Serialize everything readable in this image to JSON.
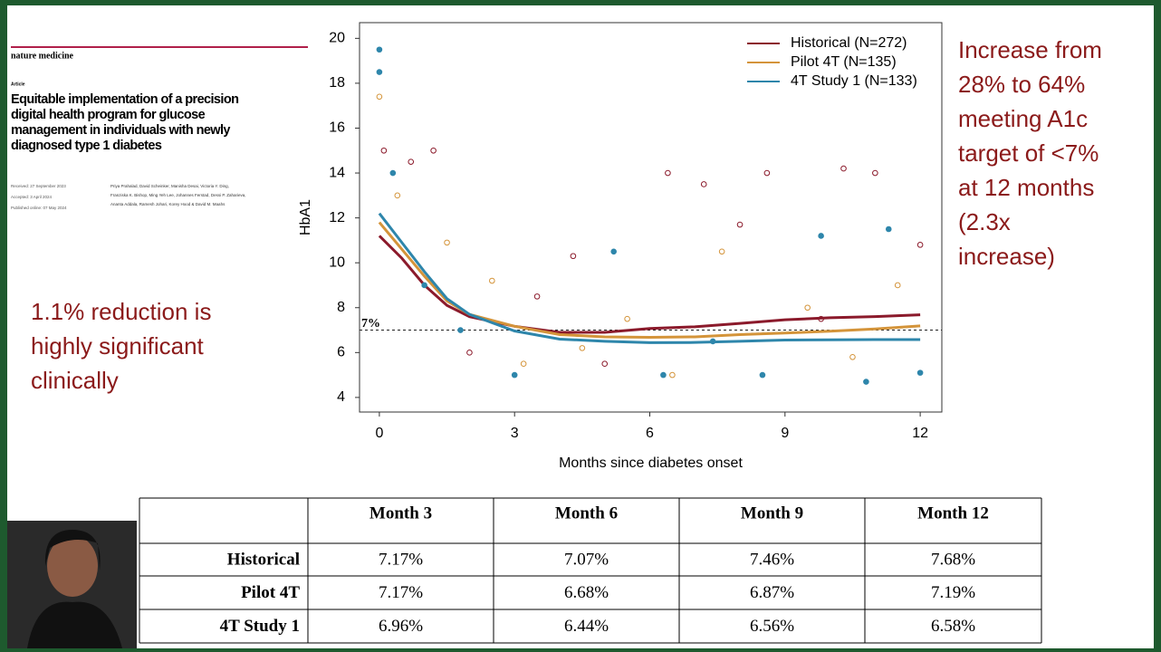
{
  "paper": {
    "journal": "nature medicine",
    "kind": "Article",
    "title_lines": [
      "Equitable implementation of a precision",
      "digital health program for glucose",
      "management in individuals with newly",
      "diagnosed type 1 diabetes"
    ],
    "dates": [
      "Received: 27 September 2023",
      "Accepted: 3 April 2024",
      "Published online: 07 May 2024"
    ],
    "authors_lines": [
      "Priya Prahalad, David Scheinker, Manisha Desai, Victoria Y. Ding,",
      "Franziska K. Bishop, Ming Yeh Lee, Johannes Ferstad, Dessi P. Zaharieva,",
      "Ananta Addala, Ramesh Johari, Korey Hood & David M. Maahs"
    ]
  },
  "left_note": [
    "1.1% reduction is",
    "highly significant",
    "clinically"
  ],
  "right_note": [
    "Increase from",
    "28% to 64%",
    "meeting A1c",
    "target of <7%",
    "at 12 months",
    "(2.3x",
    "increase)"
  ],
  "chart_data": {
    "type": "line",
    "x_label": "Months since diabetes onset",
    "y_label": "HbA1",
    "x": [
      0,
      0.5,
      1,
      1.5,
      2,
      3,
      4,
      5,
      6,
      7,
      8,
      9,
      10,
      11,
      12
    ],
    "series": [
      {
        "name": "Historical (N=272)",
        "color": "#8b1a2b",
        "hollow": true,
        "values": [
          11.2,
          10.2,
          9.0,
          8.1,
          7.6,
          7.17,
          6.9,
          6.9,
          7.07,
          7.15,
          7.3,
          7.46,
          7.55,
          7.6,
          7.68
        ],
        "points": {
          "x": [
            0.1,
            0.7,
            1.2,
            2,
            3.5,
            4.3,
            6.4,
            7.2,
            8.6,
            10.3,
            11,
            9.8,
            12,
            5,
            8
          ],
          "y": [
            15,
            14.5,
            15,
            6,
            8.5,
            10.3,
            14,
            13.5,
            14,
            14.2,
            14,
            7.5,
            10.8,
            5.5,
            11.7
          ]
        }
      },
      {
        "name": "Pilot 4T (N=135)",
        "color": "#d4943a",
        "hollow": true,
        "values": [
          11.8,
          10.6,
          9.4,
          8.3,
          7.7,
          7.17,
          6.8,
          6.7,
          6.68,
          6.7,
          6.8,
          6.87,
          6.95,
          7.05,
          7.19
        ],
        "points": {
          "x": [
            0,
            0.4,
            1.5,
            2.5,
            3.2,
            5.5,
            7.6,
            9.5,
            11.5,
            4.5,
            10.5,
            6.5
          ],
          "y": [
            17.4,
            13,
            10.9,
            9.2,
            5.5,
            7.5,
            10.5,
            8,
            9,
            6.2,
            5.8,
            5
          ]
        }
      },
      {
        "name": "4T Study 1 (N=133)",
        "color": "#2e86ab",
        "hollow": false,
        "values": [
          12.2,
          10.9,
          9.6,
          8.4,
          7.7,
          6.96,
          6.6,
          6.5,
          6.44,
          6.45,
          6.5,
          6.56,
          6.57,
          6.58,
          6.58
        ],
        "points": {
          "x": [
            0,
            0,
            0.3,
            1,
            1.8,
            3,
            5.2,
            6.3,
            8.5,
            9.8,
            11.3,
            12,
            10.8,
            7.4
          ],
          "y": [
            19.5,
            18.5,
            14,
            9,
            7,
            5,
            10.5,
            5,
            5,
            11.2,
            11.5,
            5.1,
            4.7,
            6.5
          ]
        }
      }
    ],
    "xlim": [
      -0.44,
      12.48
    ],
    "ylim": [
      3.35,
      20.7
    ],
    "xticks": [
      0,
      3,
      6,
      9,
      12
    ],
    "yticks": [
      4,
      6,
      8,
      10,
      12,
      14,
      16,
      18,
      20
    ],
    "reference_line": {
      "value": 7,
      "label": "7%"
    },
    "legend": "top-right"
  },
  "table": {
    "columns": [
      "Month 3",
      "Month 6",
      "Month 9",
      "Month 12"
    ],
    "rows": [
      {
        "label": "Historical",
        "cells": [
          "7.17%",
          "7.07%",
          "7.46%",
          "7.68%"
        ]
      },
      {
        "label": "Pilot 4T",
        "cells": [
          "7.17%",
          "6.68%",
          "6.87%",
          "7.19%"
        ]
      },
      {
        "label": "4T Study 1",
        "cells": [
          "6.96%",
          "6.44%",
          "6.56%",
          "6.58%"
        ]
      }
    ]
  }
}
